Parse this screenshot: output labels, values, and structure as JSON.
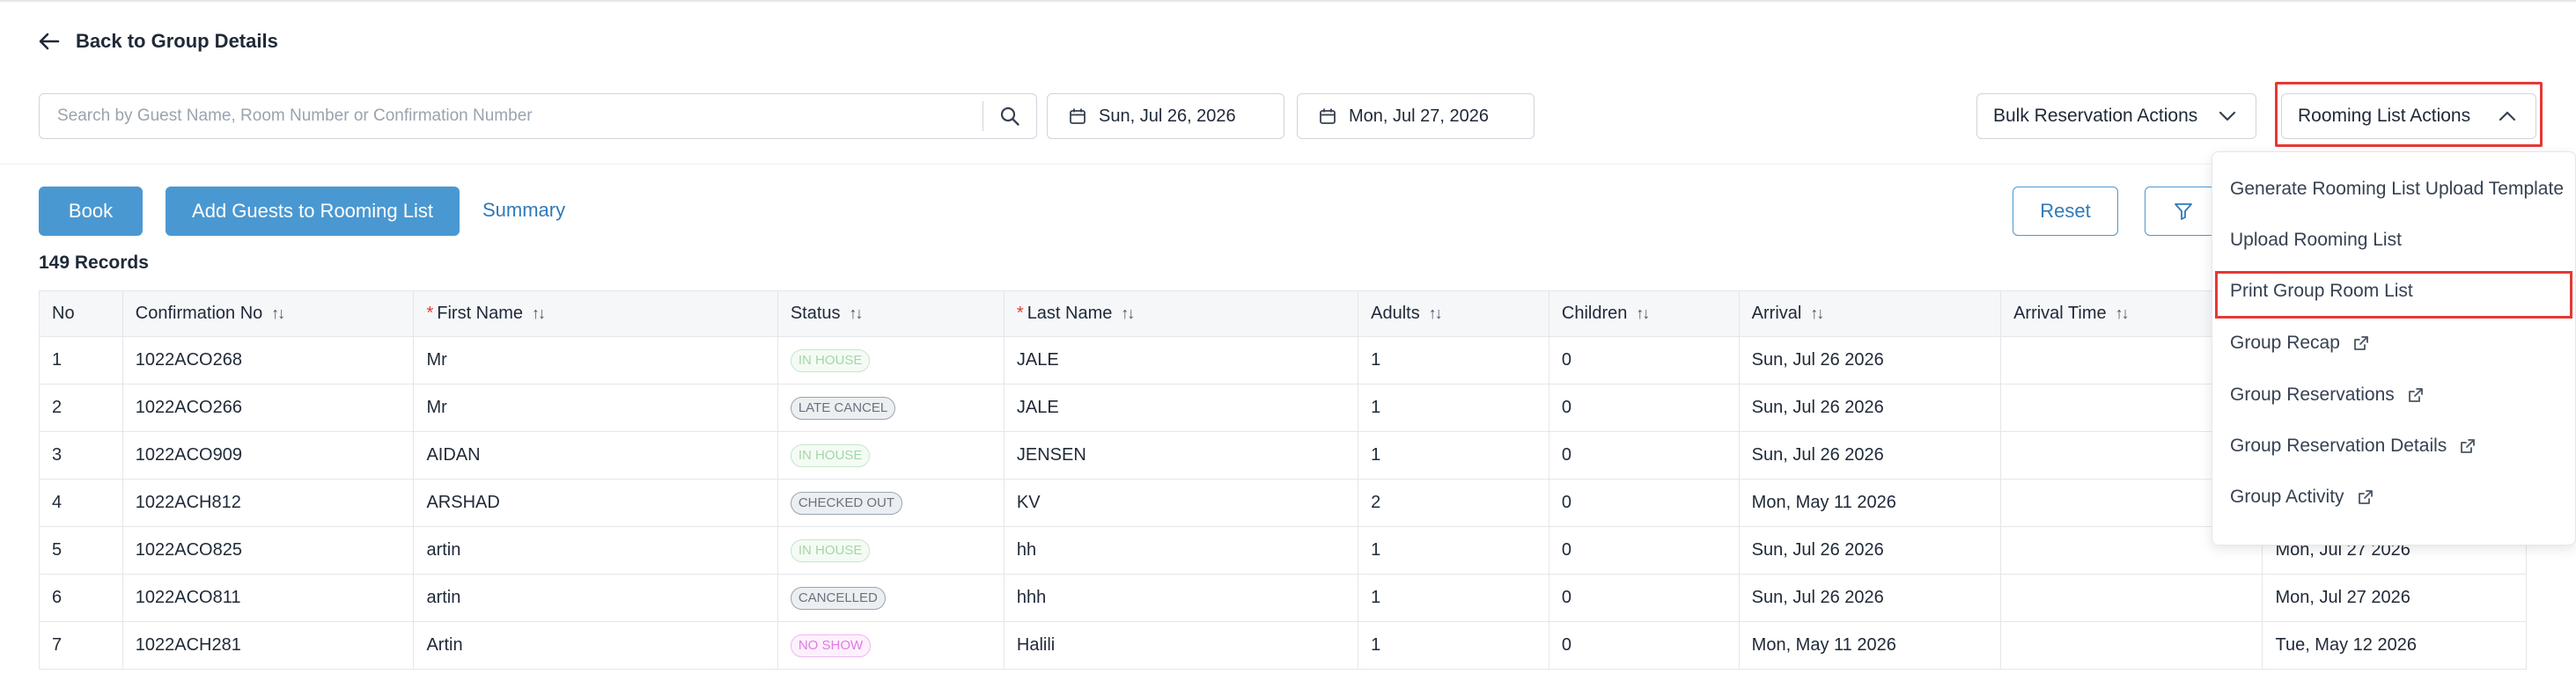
{
  "nav": {
    "back_label": "Back to Group Details"
  },
  "search": {
    "placeholder": "Search by Guest Name, Room Number or Confirmation Number",
    "value": ""
  },
  "dates": {
    "start": "Sun, Jul 26, 2026",
    "end": "Mon, Jul 27, 2026"
  },
  "selects": {
    "bulk_label": "Bulk Reservation Actions",
    "rooming_label": "Rooming List Actions"
  },
  "actions": {
    "book": "Book",
    "add_guests": "Add Guests to Rooming List",
    "summary": "Summary",
    "reset": "Reset"
  },
  "records_label": "149 Records",
  "table": {
    "headers": {
      "no": "No",
      "confirmation": "Confirmation No",
      "first_name": "First Name",
      "status": "Status",
      "last_name": "Last Name",
      "adults": "Adults",
      "children": "Children",
      "arrival": "Arrival",
      "arrival_time": "Arrival Time",
      "required_mark": "*",
      "sort_glyph": "↑↓"
    },
    "rows": [
      {
        "no": "1",
        "conf": "1022ACO268",
        "first": "Mr",
        "status": "IN HOUSE",
        "last": "JALE",
        "adults": "1",
        "children": "0",
        "arrival": "Sun, Jul 26 2026",
        "departure": ""
      },
      {
        "no": "2",
        "conf": "1022ACO266",
        "first": "Mr",
        "status": "LATE CANCEL",
        "last": "JALE",
        "adults": "1",
        "children": "0",
        "arrival": "Sun, Jul 26 2026",
        "departure": ""
      },
      {
        "no": "3",
        "conf": "1022ACO909",
        "first": "AIDAN",
        "status": "IN HOUSE",
        "last": "JENSEN",
        "adults": "1",
        "children": "0",
        "arrival": "Sun, Jul 26 2026",
        "departure": ""
      },
      {
        "no": "4",
        "conf": "1022ACH812",
        "first": "ARSHAD",
        "status": "CHECKED OUT",
        "last": "KV",
        "adults": "2",
        "children": "0",
        "arrival": "Mon, May 11 2026",
        "departure": ""
      },
      {
        "no": "5",
        "conf": "1022ACO825",
        "first": "artin",
        "status": "IN HOUSE",
        "last": "hh",
        "adults": "1",
        "children": "0",
        "arrival": "Sun, Jul 26 2026",
        "departure": "Mon, Jul 27 2026"
      },
      {
        "no": "6",
        "conf": "1022ACO811",
        "first": "artin",
        "status": "CANCELLED",
        "last": "hhh",
        "adults": "1",
        "children": "0",
        "arrival": "Sun, Jul 26 2026",
        "departure": "Mon, Jul 27 2026"
      },
      {
        "no": "7",
        "conf": "1022ACH281",
        "first": "Artin",
        "status": "NO SHOW",
        "last": "Halili",
        "adults": "1",
        "children": "0",
        "arrival": "Mon, May 11 2026",
        "departure": "Tue, May 12 2026"
      }
    ]
  },
  "menu": {
    "items": [
      {
        "label": "Generate Rooming List Upload Template",
        "external": false
      },
      {
        "label": "Upload Rooming List",
        "external": false
      },
      {
        "label": "Print Group Room List",
        "external": false
      },
      {
        "label": "Group Recap",
        "external": true
      },
      {
        "label": "Group Reservations",
        "external": true
      },
      {
        "label": "Group Reservation Details",
        "external": true
      },
      {
        "label": "Group Activity",
        "external": true
      }
    ]
  },
  "colors": {
    "primary": "#4a98d1",
    "highlight": "#e53935",
    "link": "#2f7ab8"
  },
  "icons": [
    "arrow-left-icon",
    "search-icon",
    "calendar-icon",
    "chevron-down-icon",
    "chevron-up-icon",
    "filter-icon",
    "external-link-icon"
  ]
}
